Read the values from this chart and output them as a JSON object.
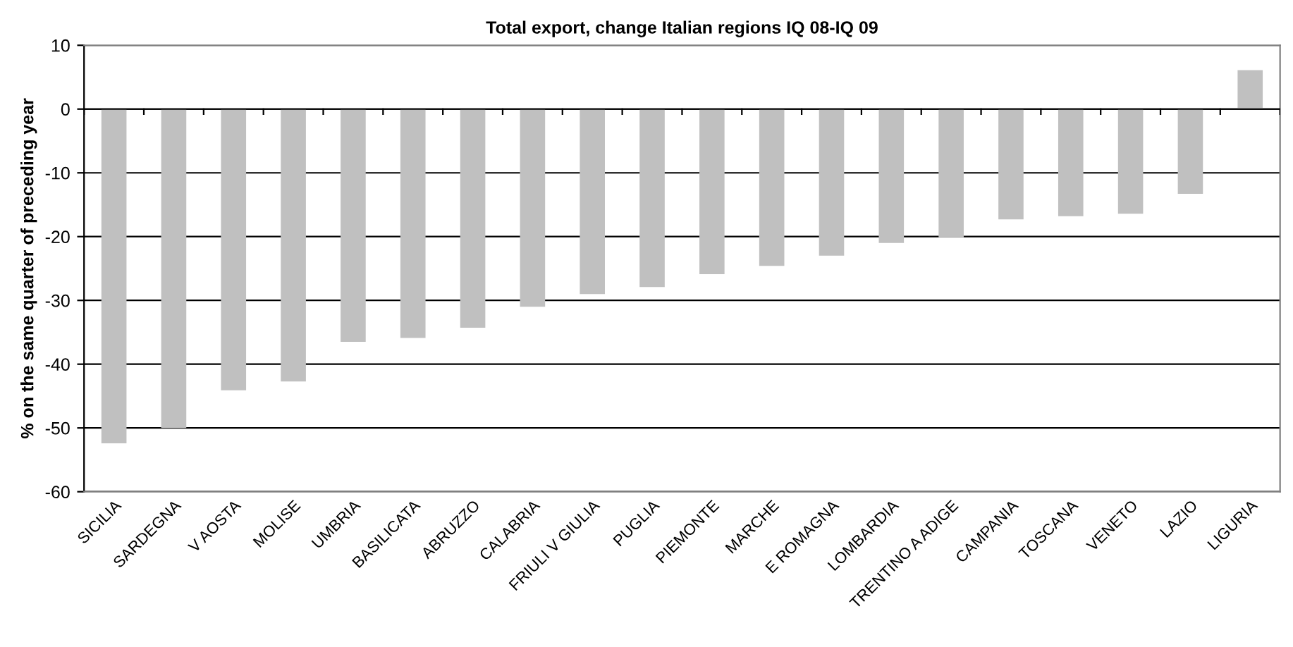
{
  "chart_data": {
    "type": "bar",
    "title": "Total export, change Italian regions IQ 08-IQ 09",
    "ylabel": "% on the same quarter of preceding year",
    "categories": [
      "SICILIA",
      "SARDEGNA",
      "V AOSTA",
      "MOLISE",
      "UMBRIA",
      "BASILICATA",
      "ABRUZZO",
      "CALABRIA",
      "FRIULI V GIULIA",
      "PUGLIA",
      "PIEMONTE",
      "MARCHE",
      "E ROMAGNA",
      "LOMBARDIA",
      "TRENTINO A ADIGE",
      "CAMPANIA",
      "TOSCANA",
      "VENETO",
      "LAZIO",
      "LIGURIA"
    ],
    "values": [
      -52.4,
      -50.0,
      -44.1,
      -42.7,
      -36.5,
      -35.9,
      -34.3,
      -31.0,
      -29.0,
      -27.9,
      -25.9,
      -24.6,
      -23.0,
      -21.0,
      -20.1,
      -17.3,
      -16.8,
      -16.4,
      -13.3,
      6.1
    ],
    "color": "#c0c0c0",
    "ylim": [
      -60,
      10
    ],
    "yticks": [
      -60,
      -50,
      -40,
      -30,
      -20,
      -10,
      0,
      10
    ],
    "grid": "y"
  }
}
